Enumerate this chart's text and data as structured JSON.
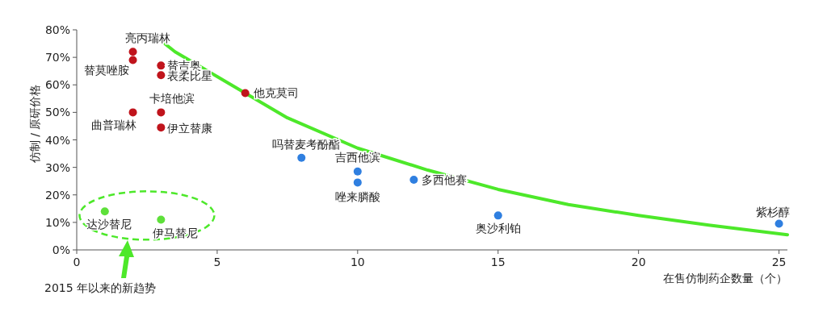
{
  "chart_data": {
    "type": "scatter",
    "xlabel": "在售仿制药企数量（个）",
    "ylabel": "仿制 / 原研价格",
    "xlim": [
      0,
      25.3
    ],
    "ylim": [
      0,
      80
    ],
    "xticks": [
      0,
      5,
      10,
      15,
      20,
      25
    ],
    "yticks": [
      {
        "value": 0,
        "label": "0%"
      },
      {
        "value": 10,
        "label": "10%"
      },
      {
        "value": 20,
        "label": "20%"
      },
      {
        "value": 30,
        "label": "30%"
      },
      {
        "value": 40,
        "label": "40%"
      },
      {
        "value": 50,
        "label": "50%"
      },
      {
        "value": 60,
        "label": "60%"
      },
      {
        "value": 70,
        "label": "70%"
      },
      {
        "value": 80,
        "label": "80%"
      }
    ],
    "marker": "circle",
    "grid": false,
    "series": [
      {
        "color": "#c0141c",
        "x": [
          2,
          2,
          3,
          3,
          6,
          3,
          2,
          3
        ],
        "values": [
          72,
          69,
          67,
          63.5,
          57,
          50,
          50,
          44.5
        ]
      },
      {
        "color": "#2f7fe0",
        "x": [
          8,
          10,
          10,
          12,
          15,
          25
        ],
        "values": [
          33.5,
          28.5,
          24.5,
          25.5,
          12.5,
          9.5
        ]
      },
      {
        "color": "#5ee03a",
        "x": [
          1,
          3
        ],
        "values": [
          14,
          11
        ]
      },
      {
        "type": "line",
        "marker": "none",
        "color": "#4de82a",
        "x": [
          2.7,
          3.5,
          5,
          7.5,
          10,
          12.5,
          15,
          17.5,
          20,
          22.5,
          25.3
        ],
        "values": [
          78.5,
          72,
          63,
          48,
          37,
          29,
          22,
          16.5,
          12.5,
          9,
          5.5
        ]
      }
    ],
    "annotations": [
      {
        "text": "亮丙瑞林",
        "x": 2,
        "y": 72
      },
      {
        "text": "替莫唑胺",
        "x": 2,
        "y": 69
      },
      {
        "text": "替吉奥",
        "x": 3,
        "y": 67
      },
      {
        "text": "表柔比星",
        "x": 3,
        "y": 63.5
      },
      {
        "text": "他克莫司",
        "x": 6,
        "y": 57
      },
      {
        "text": "卡培他滨",
        "x": 3,
        "y": 50
      },
      {
        "text": "曲普瑞林",
        "x": 2,
        "y": 50
      },
      {
        "text": "伊立替康",
        "x": 3,
        "y": 44.5
      },
      {
        "text": "吗替麦考酚酯",
        "x": 8,
        "y": 33.5
      },
      {
        "text": "吉西他滨",
        "x": 10,
        "y": 28.5
      },
      {
        "text": "唑来膦酸",
        "x": 10,
        "y": 24.5
      },
      {
        "text": "多西他赛",
        "x": 12,
        "y": 25.5
      },
      {
        "text": "奥沙利铂",
        "x": 15,
        "y": 12.5
      },
      {
        "text": "紫杉醇",
        "x": 25,
        "y": 9.5
      },
      {
        "text": "达沙替尼",
        "x": 1,
        "y": 14
      },
      {
        "text": "伊马替尼",
        "x": 3,
        "y": 11
      },
      "2015 年以来的新趋势"
    ]
  }
}
